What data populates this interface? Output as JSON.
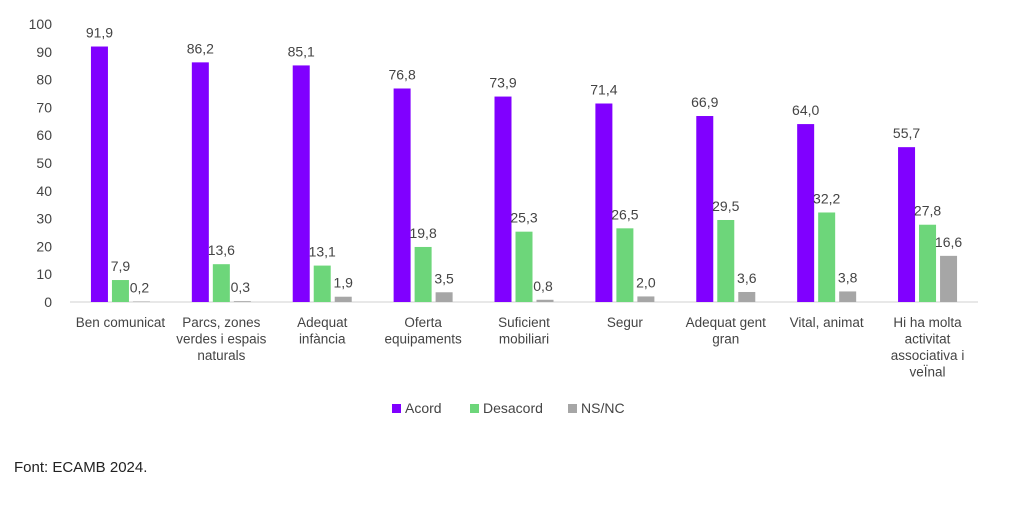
{
  "chart_data": {
    "type": "bar",
    "categories": [
      [
        "Ben comunicat"
      ],
      [
        "Parcs, zones",
        "verdes i espais",
        "naturals"
      ],
      [
        "Adequat",
        "infància"
      ],
      [
        "Oferta",
        "equipaments"
      ],
      [
        "Suficient",
        "mobiliari"
      ],
      [
        "Segur"
      ],
      [
        "Adequat gent",
        "gran"
      ],
      [
        "Vital, animat"
      ],
      [
        "Hi ha molta",
        "activitat",
        "associativa i",
        "veÏnal"
      ]
    ],
    "series": [
      {
        "name": "Acord",
        "color": "#8000ff",
        "values": [
          91.9,
          86.2,
          85.1,
          76.8,
          73.9,
          71.4,
          66.9,
          64.0,
          55.7
        ],
        "labels": [
          "91,9",
          "86,2",
          "85,1",
          "76,8",
          "73,9",
          "71,4",
          "66,9",
          "64,0",
          "55,7"
        ]
      },
      {
        "name": "Desacord",
        "color": "#6dd67a",
        "values": [
          7.9,
          13.6,
          13.1,
          19.8,
          25.3,
          26.5,
          29.5,
          32.2,
          27.8
        ],
        "labels": [
          "7,9",
          "13,6",
          "13,1",
          "19,8",
          "25,3",
          "26,5",
          "29,5",
          "32,2",
          "27,8"
        ]
      },
      {
        "name": "NS/NC",
        "color": "#a6a6a6",
        "values": [
          0.2,
          0.3,
          1.9,
          3.5,
          0.8,
          2.0,
          3.6,
          3.8,
          16.6
        ],
        "labels": [
          "0,2",
          "0,3",
          "1,9",
          "3,5",
          "0,8",
          "2,0",
          "3,6",
          "3,8",
          "16,6"
        ]
      }
    ],
    "yticks": [
      "100",
      "90",
      "80",
      "70",
      "60",
      "50",
      "40",
      "30",
      "20",
      "10",
      "0"
    ],
    "ylim": [
      0,
      100
    ],
    "legend_position": "bottom-center",
    "title": "",
    "xlabel": "",
    "ylabel": ""
  },
  "source": "Font: ECAMB 2024."
}
